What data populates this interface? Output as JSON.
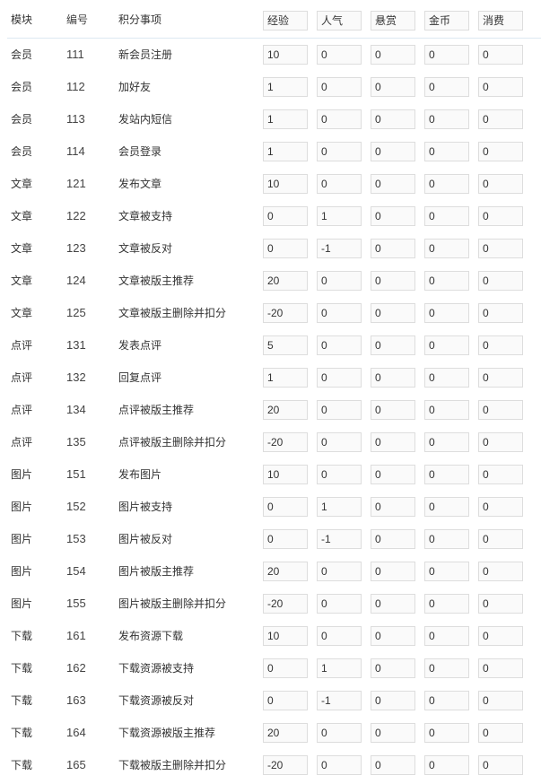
{
  "header": {
    "module": "模块",
    "code": "编号",
    "item": "积分事项",
    "fields": [
      "经验",
      "人气",
      "悬赏",
      "金币",
      "消费"
    ]
  },
  "rows": [
    {
      "module": "会员",
      "code": "111",
      "item": "新会员注册",
      "values": [
        "10",
        "0",
        "0",
        "0",
        "0"
      ]
    },
    {
      "module": "会员",
      "code": "112",
      "item": "加好友",
      "values": [
        "1",
        "0",
        "0",
        "0",
        "0"
      ]
    },
    {
      "module": "会员",
      "code": "113",
      "item": "发站内短信",
      "values": [
        "1",
        "0",
        "0",
        "0",
        "0"
      ]
    },
    {
      "module": "会员",
      "code": "114",
      "item": "会员登录",
      "values": [
        "1",
        "0",
        "0",
        "0",
        "0"
      ]
    },
    {
      "module": "文章",
      "code": "121",
      "item": "发布文章",
      "values": [
        "10",
        "0",
        "0",
        "0",
        "0"
      ]
    },
    {
      "module": "文章",
      "code": "122",
      "item": "文章被支持",
      "values": [
        "0",
        "1",
        "0",
        "0",
        "0"
      ]
    },
    {
      "module": "文章",
      "code": "123",
      "item": "文章被反对",
      "values": [
        "0",
        "-1",
        "0",
        "0",
        "0"
      ]
    },
    {
      "module": "文章",
      "code": "124",
      "item": "文章被版主推荐",
      "values": [
        "20",
        "0",
        "0",
        "0",
        "0"
      ]
    },
    {
      "module": "文章",
      "code": "125",
      "item": "文章被版主删除并扣分",
      "values": [
        "-20",
        "0",
        "0",
        "0",
        "0"
      ]
    },
    {
      "module": "点评",
      "code": "131",
      "item": "发表点评",
      "values": [
        "5",
        "0",
        "0",
        "0",
        "0"
      ]
    },
    {
      "module": "点评",
      "code": "132",
      "item": "回复点评",
      "values": [
        "1",
        "0",
        "0",
        "0",
        "0"
      ]
    },
    {
      "module": "点评",
      "code": "134",
      "item": "点评被版主推荐",
      "values": [
        "20",
        "0",
        "0",
        "0",
        "0"
      ]
    },
    {
      "module": "点评",
      "code": "135",
      "item": "点评被版主删除并扣分",
      "values": [
        "-20",
        "0",
        "0",
        "0",
        "0"
      ]
    },
    {
      "module": "图片",
      "code": "151",
      "item": "发布图片",
      "values": [
        "10",
        "0",
        "0",
        "0",
        "0"
      ]
    },
    {
      "module": "图片",
      "code": "152",
      "item": "图片被支持",
      "values": [
        "0",
        "1",
        "0",
        "0",
        "0"
      ]
    },
    {
      "module": "图片",
      "code": "153",
      "item": "图片被反对",
      "values": [
        "0",
        "-1",
        "0",
        "0",
        "0"
      ]
    },
    {
      "module": "图片",
      "code": "154",
      "item": "图片被版主推荐",
      "values": [
        "20",
        "0",
        "0",
        "0",
        "0"
      ]
    },
    {
      "module": "图片",
      "code": "155",
      "item": "图片被版主删除并扣分",
      "values": [
        "-20",
        "0",
        "0",
        "0",
        "0"
      ]
    },
    {
      "module": "下载",
      "code": "161",
      "item": "发布资源下载",
      "values": [
        "10",
        "0",
        "0",
        "0",
        "0"
      ]
    },
    {
      "module": "下载",
      "code": "162",
      "item": "下载资源被支持",
      "values": [
        "0",
        "1",
        "0",
        "0",
        "0"
      ]
    },
    {
      "module": "下载",
      "code": "163",
      "item": "下载资源被反对",
      "values": [
        "0",
        "-1",
        "0",
        "0",
        "0"
      ]
    },
    {
      "module": "下载",
      "code": "164",
      "item": "下载资源被版主推荐",
      "values": [
        "20",
        "0",
        "0",
        "0",
        "0"
      ]
    },
    {
      "module": "下载",
      "code": "165",
      "item": "下载被版主删除并扣分",
      "values": [
        "-20",
        "0",
        "0",
        "0",
        "0"
      ]
    }
  ]
}
